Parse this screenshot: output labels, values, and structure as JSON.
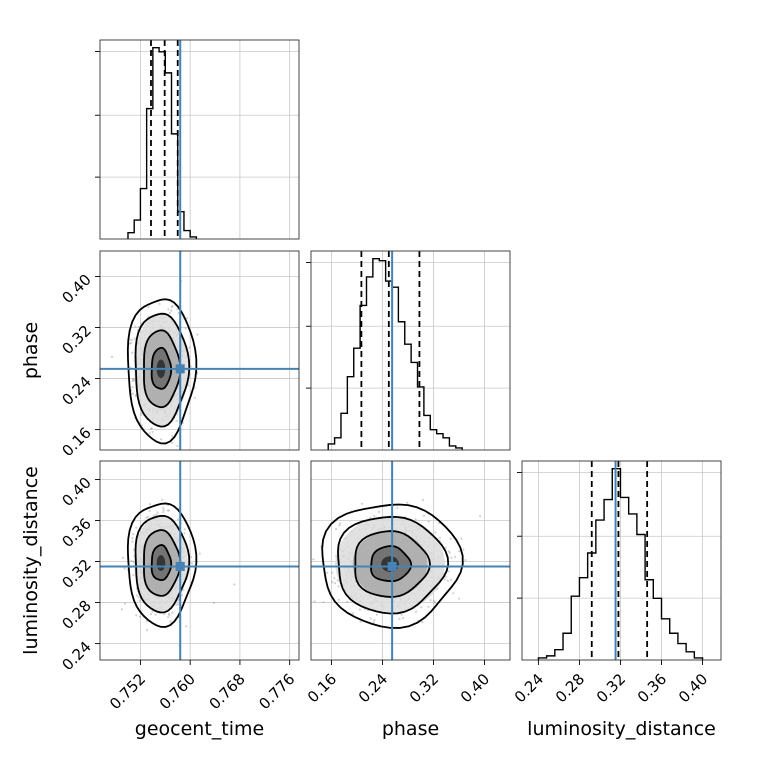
{
  "chart_data": {
    "type": "corner",
    "parameters": [
      "geocent_time",
      "phase",
      "luminosity_distance"
    ],
    "axis_labels": {
      "x": [
        "geocent_time",
        "phase",
        "luminosity_distance"
      ],
      "y": [
        "",
        "phase",
        "luminosity_distance"
      ]
    },
    "ranges": {
      "geocent_time": [
        0.7455,
        0.7775
      ],
      "phase": [
        0.128,
        0.44
      ],
      "luminosity_distance": [
        0.224,
        0.418
      ]
    },
    "ticks": {
      "geocent_time": [
        "0.752",
        "0.760",
        "0.768",
        "0.776"
      ],
      "phase": [
        "0.16",
        "0.24",
        "0.32",
        "0.40"
      ],
      "luminosity_distance": [
        "0.24",
        "0.28",
        "0.32",
        "0.36",
        "0.40"
      ]
    },
    "truths": {
      "geocent_time": 0.7584,
      "phase": 0.2552,
      "luminosity_distance": 0.3152
    },
    "quantiles": {
      "geocent_time": [
        0.7537,
        0.7559,
        0.758
      ],
      "phase": [
        0.207,
        0.25,
        0.298
      ],
      "luminosity_distance": [
        0.292,
        0.318,
        0.346
      ]
    },
    "histograms": {
      "geocent_time": {
        "bin_edges": [
          0.75,
          0.751,
          0.752,
          0.753,
          0.754,
          0.755,
          0.756,
          0.757,
          0.758,
          0.759,
          0.76,
          0.761
        ],
        "counts": [
          3,
          9,
          24,
          62,
          91,
          89,
          79,
          50,
          13,
          4,
          1
        ]
      },
      "phase": {
        "bin_edges": [
          0.155,
          0.165,
          0.175,
          0.185,
          0.195,
          0.205,
          0.215,
          0.225,
          0.235,
          0.245,
          0.255,
          0.265,
          0.275,
          0.285,
          0.295,
          0.305,
          0.315,
          0.325,
          0.335,
          0.345,
          0.355,
          0.365
        ],
        "counts": [
          3,
          6,
          18,
          36,
          50,
          71,
          85,
          94,
          93,
          83,
          80,
          63,
          52,
          43,
          31,
          17,
          10,
          8,
          6,
          2,
          1
        ]
      },
      "luminosity_distance": {
        "bin_edges": [
          0.24,
          0.248,
          0.256,
          0.264,
          0.272,
          0.28,
          0.288,
          0.296,
          0.304,
          0.312,
          0.32,
          0.328,
          0.336,
          0.344,
          0.352,
          0.36,
          0.368,
          0.376,
          0.384,
          0.392,
          0.4
        ],
        "counts": [
          1,
          2,
          5,
          13,
          31,
          40,
          52,
          68,
          78,
          93,
          79,
          71,
          61,
          39,
          30,
          20,
          13,
          8,
          4,
          1
        ]
      }
    },
    "scatter": [
      {
        "x": "geocent_time",
        "y": "phase",
        "center": [
          0.7553,
          0.2552
        ],
        "spread": [
          0.00195,
          0.0402
        ],
        "level_radii": [
          0.8,
          1.5,
          2.2,
          2.8
        ]
      },
      {
        "x": "geocent_time",
        "y": "luminosity_distance",
        "center": [
          0.7553,
          0.3185
        ],
        "spread": [
          0.00195,
          0.0214
        ],
        "level_radii": [
          0.8,
          1.5,
          2.2,
          2.8
        ]
      },
      {
        "x": "phase",
        "y": "luminosity_distance",
        "center": [
          0.252,
          0.3175
        ],
        "spread": [
          0.039,
          0.0214
        ],
        "level_radii": [
          0.8,
          1.5,
          2.2,
          2.8
        ]
      }
    ],
    "grid": true,
    "colors": {
      "truth": "#4682b4",
      "histogram": "#000000",
      "points": "#9a9a9a"
    }
  }
}
